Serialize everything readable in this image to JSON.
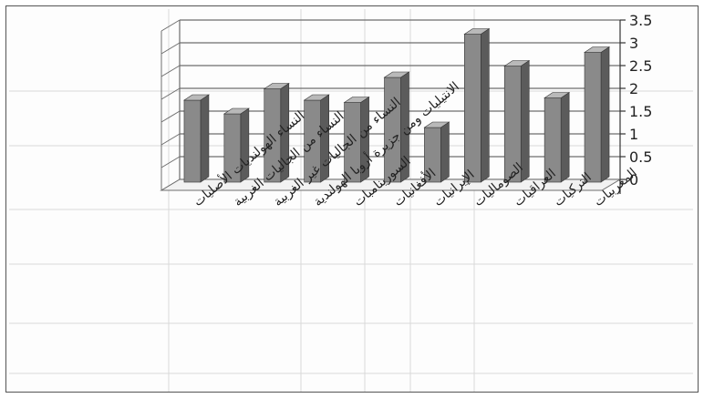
{
  "chart_data": {
    "type": "bar",
    "style": "3d-clustered-column",
    "categories": [
      "النساء الهولنديات الأصليات",
      "النساء من الجاليات الغربية",
      "النساء من الجاليات غير الغربية",
      "الانتيليات ومن جزيرة أروبا الهولندية",
      "السورينامبات",
      "الأفغانيات",
      "الإيرانيات",
      "الصوماليات",
      "العراقيات",
      "التركيات",
      "المغربيات"
    ],
    "values": [
      1.8,
      1.5,
      2.05,
      1.8,
      1.75,
      2.3,
      1.2,
      3.25,
      2.55,
      1.85,
      2.85
    ],
    "yticks": [
      "0",
      "0.5",
      "1",
      "1.5",
      "2",
      "2.5",
      "3",
      "3.5"
    ],
    "ylim": [
      0,
      3.5
    ],
    "title": "",
    "xlabel": "",
    "ylabel": "",
    "grid": true,
    "legend": "none",
    "colors": {
      "bar_front": "#8a8a8a",
      "bar_top": "#b9b9b9",
      "bar_side": "#5b5b5b",
      "grid": "#6e6e6e",
      "wall": "#ffffff"
    }
  }
}
